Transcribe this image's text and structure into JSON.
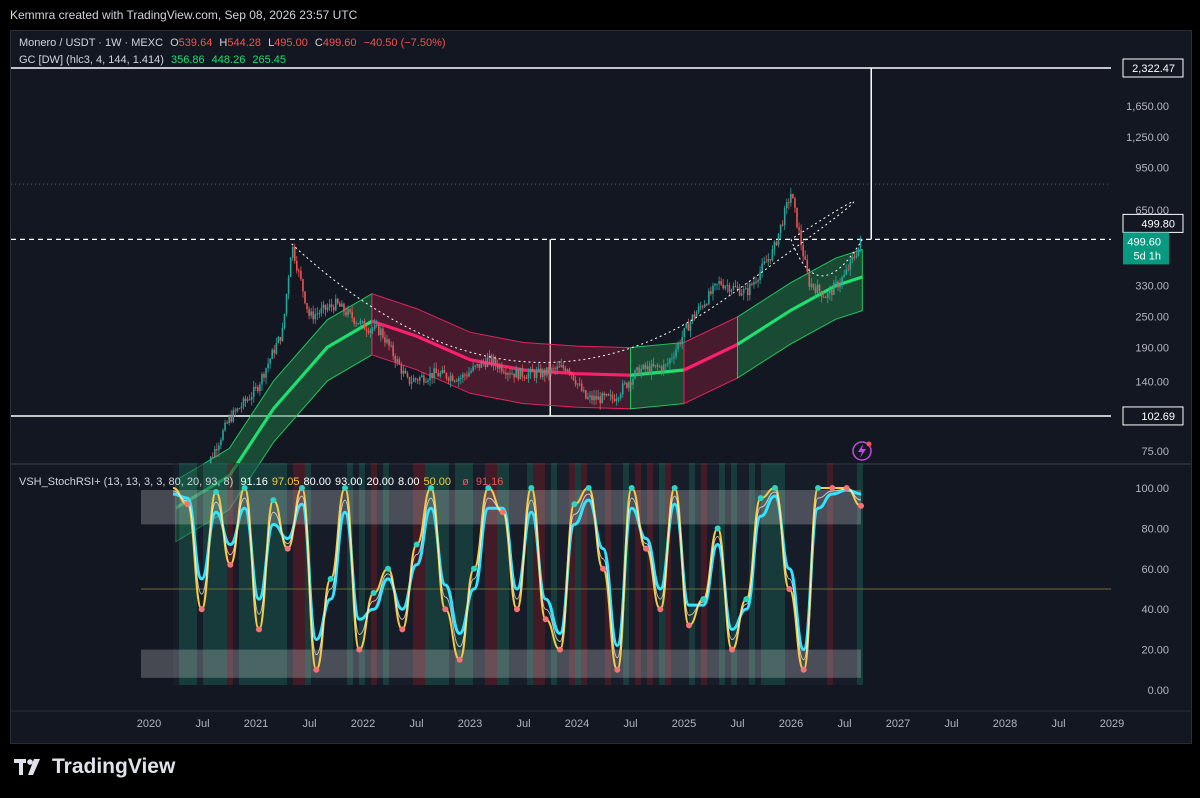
{
  "header": {
    "attribution": "Kemmra created with TradingView.com, Sep 08, 2026 23:57 UTC"
  },
  "legend": {
    "symbol": "Monero / USDT · 1W · MEXC",
    "o_label": "O",
    "o": "539.64",
    "h_label": "H",
    "h": "544.28",
    "l_label": "L",
    "l": "495.00",
    "c_label": "C",
    "c": "499.60",
    "change": "−40.50 (−7.50%)",
    "indicator": "GC [DW] (hlc3, 4, 144, 1.414)",
    "ind_v1": "356.86",
    "ind_v2": "448.26",
    "ind_v3": "265.45"
  },
  "osc_legend": {
    "name": "VSH_StochRSI+ (13, 13, 3, 3, 80, 20, 93, 8)",
    "values": [
      "91.16",
      "97.05",
      "80.00",
      "93.00",
      "20.00",
      "8.00",
      "50.00"
    ],
    "value_colors": [
      "#ffffff",
      "#f7c948",
      "#ffffff",
      "#ffffff",
      "#ffffff",
      "#ffffff",
      "#f7c948"
    ],
    "null_glyph": "ø",
    "last": "91.16"
  },
  "colors": {
    "up": "#26a69a",
    "down": "#ef5350",
    "bg": "#131722",
    "band_green": "#1f8a4c",
    "band_red": "#8a1f3f",
    "mid_green": "#1ee06e",
    "mid_red": "#ff1f6b",
    "k_line": "#f7c948",
    "d_line": "#33e4ff"
  },
  "chart_data": [
    {
      "type": "line",
      "title": "Monero / USDT · 1W · MEXC",
      "scale": "log",
      "y_ticks": [
        "75.00",
        "102.69",
        "140.00",
        "190.00",
        "250.00",
        "330.00",
        "499.80",
        "650.00",
        "950.00",
        "1,250.00",
        "1,650.00",
        "2,322.47"
      ],
      "x_ticks": [
        "2020",
        "Jul",
        "2021",
        "Jul",
        "2022",
        "Jul",
        "2023",
        "Jul",
        "2024",
        "Jul",
        "2025",
        "Jul",
        "2026",
        "Jul",
        "2027",
        "Jul",
        "2028",
        "Jul",
        "2029"
      ],
      "price_labels": {
        "target": "2,322.47",
        "resistance": "499.80",
        "last": "499.60",
        "countdown": "5d 1h",
        "support": "102.69"
      },
      "levels": {
        "target": 2322.47,
        "resistance": 499.8,
        "support": 102.69,
        "dotted": 820
      },
      "series": [
        {
          "name": "Monero / USDT",
          "x": [
            "2020-07",
            "2020-10",
            "2021-01",
            "2021-04",
            "2021-05",
            "2021-07",
            "2021-10",
            "2022-01",
            "2022-03",
            "2022-06",
            "2022-09",
            "2022-12",
            "2023-03",
            "2023-06",
            "2023-09",
            "2023-12",
            "2024-02",
            "2024-05",
            "2024-08",
            "2024-11",
            "2025-02",
            "2025-05",
            "2025-08",
            "2025-11",
            "2026-01",
            "2026-03",
            "2026-05",
            "2026-07",
            "2026-09"
          ],
          "values": [
            60,
            100,
            130,
            220,
            480,
            250,
            280,
            230,
            220,
            140,
            150,
            145,
            170,
            150,
            150,
            160,
            120,
            120,
            155,
            160,
            250,
            340,
            310,
            450,
            760,
            340,
            300,
            360,
            499.6
          ]
        }
      ]
    },
    {
      "type": "line",
      "title": "VSH_StochRSI+ (13, 13, 3, 3, 80, 20, 93, 8)",
      "y_ticks": [
        "0.00",
        "20.00",
        "40.00",
        "60.00",
        "80.00",
        "100.00"
      ],
      "ylim": [
        0,
        100
      ],
      "series": [
        {
          "name": "K",
          "values": [
            100,
            92,
            40,
            98,
            62,
            100,
            30,
            94,
            70,
            100,
            10,
            55,
            100,
            20,
            48,
            60,
            30,
            72,
            100,
            40,
            15,
            60,
            100,
            88,
            40,
            100,
            35,
            20,
            92,
            100,
            60,
            10,
            100,
            70,
            40,
            100,
            32,
            45,
            80,
            20,
            45,
            95,
            100,
            50,
            10,
            100,
            100,
            100,
            91.16
          ]
        },
        {
          "name": "D",
          "values": [
            97,
            95,
            55,
            88,
            72,
            90,
            45,
            82,
            75,
            92,
            25,
            45,
            88,
            35,
            40,
            55,
            40,
            62,
            90,
            52,
            28,
            50,
            90,
            90,
            50,
            88,
            45,
            28,
            82,
            94,
            70,
            22,
            90,
            75,
            50,
            92,
            42,
            42,
            72,
            30,
            40,
            86,
            96,
            60,
            20,
            90,
            97,
            99,
            97.05
          ]
        }
      ]
    }
  ]
}
